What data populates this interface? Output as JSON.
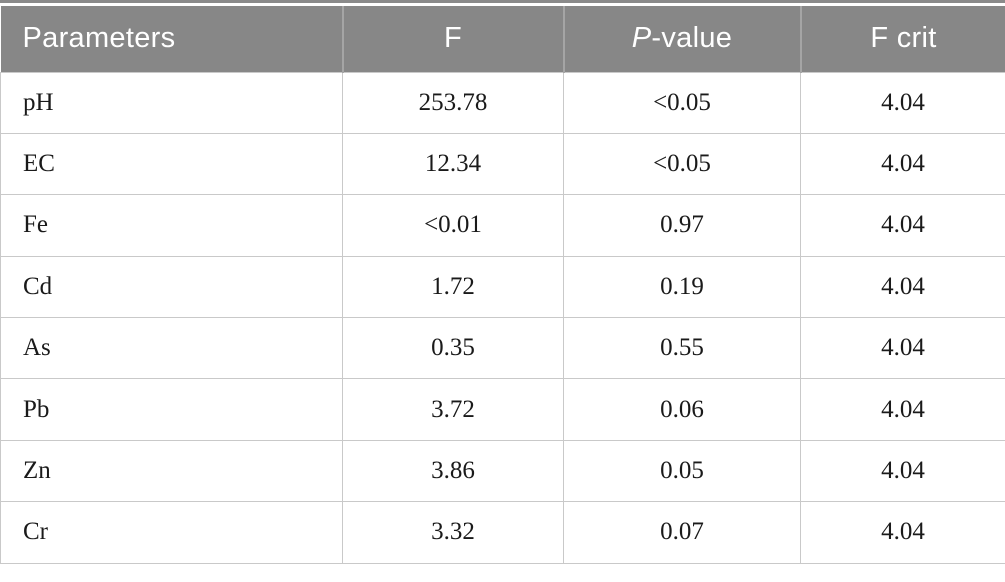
{
  "colors": {
    "header_bg": "#878787",
    "header_text": "#ffffff",
    "header_divider": "#a5a5a5",
    "body_border": "#c9c9c9",
    "body_text": "#1a1a1a",
    "top_rule": "#8a8a8a"
  },
  "header": {
    "parameters": "Parameters",
    "f": "F",
    "p_value_italic": "P",
    "p_value_rest": "-value",
    "f_crit": "F crit"
  },
  "rows": [
    {
      "parameter": "pH",
      "f": "253.78",
      "p_value": "<0.05",
      "f_crit": "4.04"
    },
    {
      "parameter": "EC",
      "f": "12.34",
      "p_value": "<0.05",
      "f_crit": "4.04"
    },
    {
      "parameter": "Fe",
      "f": "<0.01",
      "p_value": "0.97",
      "f_crit": "4.04"
    },
    {
      "parameter": "Cd",
      "f": "1.72",
      "p_value": "0.19",
      "f_crit": "4.04"
    },
    {
      "parameter": "As",
      "f": "0.35",
      "p_value": "0.55",
      "f_crit": "4.04"
    },
    {
      "parameter": "Pb",
      "f": "3.72",
      "p_value": "0.06",
      "f_crit": "4.04"
    },
    {
      "parameter": "Zn",
      "f": "3.86",
      "p_value": "0.05",
      "f_crit": "4.04"
    },
    {
      "parameter": "Cr",
      "f": "3.32",
      "p_value": "0.07",
      "f_crit": "4.04"
    }
  ],
  "chart_data": {
    "type": "table",
    "title": "",
    "columns": [
      "Parameters",
      "F",
      "P-value",
      "F crit"
    ],
    "rows": [
      [
        "pH",
        "253.78",
        "<0.05",
        "4.04"
      ],
      [
        "EC",
        "12.34",
        "<0.05",
        "4.04"
      ],
      [
        "Fe",
        "<0.01",
        "0.97",
        "4.04"
      ],
      [
        "Cd",
        "1.72",
        "0.19",
        "4.04"
      ],
      [
        "As",
        "0.35",
        "0.55",
        "4.04"
      ],
      [
        "Pb",
        "3.72",
        "0.06",
        "4.04"
      ],
      [
        "Zn",
        "3.86",
        "0.05",
        "4.04"
      ],
      [
        "Cr",
        "3.32",
        "0.07",
        "4.04"
      ]
    ]
  }
}
